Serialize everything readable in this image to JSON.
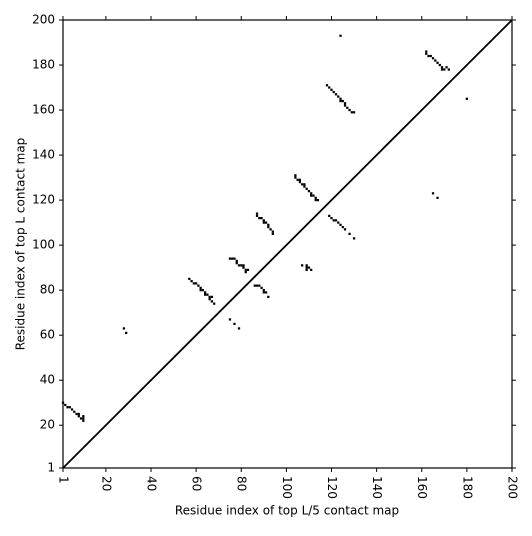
{
  "chart_data": {
    "type": "scatter",
    "xlabel": "Residue index of top L/5 contact map",
    "ylabel": "Residue index of top L contact map",
    "x": [
      1,
      2,
      3,
      4,
      5,
      6,
      7,
      8,
      8,
      9,
      10,
      10,
      10,
      28,
      29,
      57,
      58,
      59,
      60,
      61,
      62,
      62,
      63,
      64,
      64,
      65,
      66,
      66,
      67,
      67,
      68,
      75,
      77,
      79,
      75,
      76,
      77,
      78,
      78,
      79,
      80,
      81,
      81,
      82,
      82,
      83,
      86,
      87,
      88,
      89,
      90,
      90,
      91,
      92,
      87,
      87,
      88,
      89,
      90,
      90,
      91,
      92,
      92,
      93,
      94,
      94,
      107,
      109,
      109,
      109,
      110,
      111,
      104,
      104,
      105,
      106,
      106,
      107,
      108,
      108,
      109,
      110,
      111,
      111,
      112,
      113,
      113,
      114,
      119,
      120,
      121,
      122,
      123,
      124,
      125,
      126,
      128,
      130,
      118,
      119,
      120,
      121,
      122,
      123,
      124,
      124,
      125,
      126,
      126,
      127,
      128,
      129,
      130,
      124,
      162,
      162,
      163,
      164,
      165,
      166,
      167,
      168,
      169,
      169,
      170,
      171,
      172,
      165,
      167,
      180
    ],
    "y": [
      30,
      29,
      28,
      28,
      27,
      26,
      25,
      25,
      24,
      23,
      23,
      22,
      24,
      63,
      61,
      85,
      84,
      83,
      83,
      82,
      81,
      80,
      80,
      79,
      78,
      78,
      77,
      76,
      77,
      75,
      74,
      67,
      65,
      63,
      94,
      94,
      94,
      93,
      92,
      91,
      91,
      91,
      90,
      89,
      88,
      89,
      82,
      82,
      82,
      81,
      80,
      79,
      79,
      77,
      114,
      113,
      112,
      112,
      111,
      110,
      110,
      109,
      108,
      107,
      106,
      105,
      91,
      91,
      90,
      89,
      90,
      89,
      131,
      130,
      129,
      129,
      128,
      127,
      127,
      126,
      125,
      124,
      123,
      122,
      122,
      121,
      120,
      120,
      113,
      112,
      111,
      111,
      110,
      109,
      108,
      107,
      105,
      103,
      171,
      170,
      169,
      168,
      167,
      166,
      165,
      164,
      164,
      163,
      162,
      161,
      160,
      159,
      159,
      193,
      186,
      185,
      184,
      184,
      183,
      182,
      181,
      180,
      179,
      178,
      178,
      179,
      178,
      123,
      121,
      165
    ],
    "color": "#000000",
    "xlim": [
      1,
      200
    ],
    "ylim": [
      1,
      200
    ],
    "xticks": [
      1,
      20,
      40,
      60,
      80,
      100,
      120,
      140,
      160,
      180,
      200
    ],
    "yticks": [
      1,
      20,
      40,
      60,
      80,
      100,
      120,
      140,
      160,
      180,
      200
    ]
  }
}
